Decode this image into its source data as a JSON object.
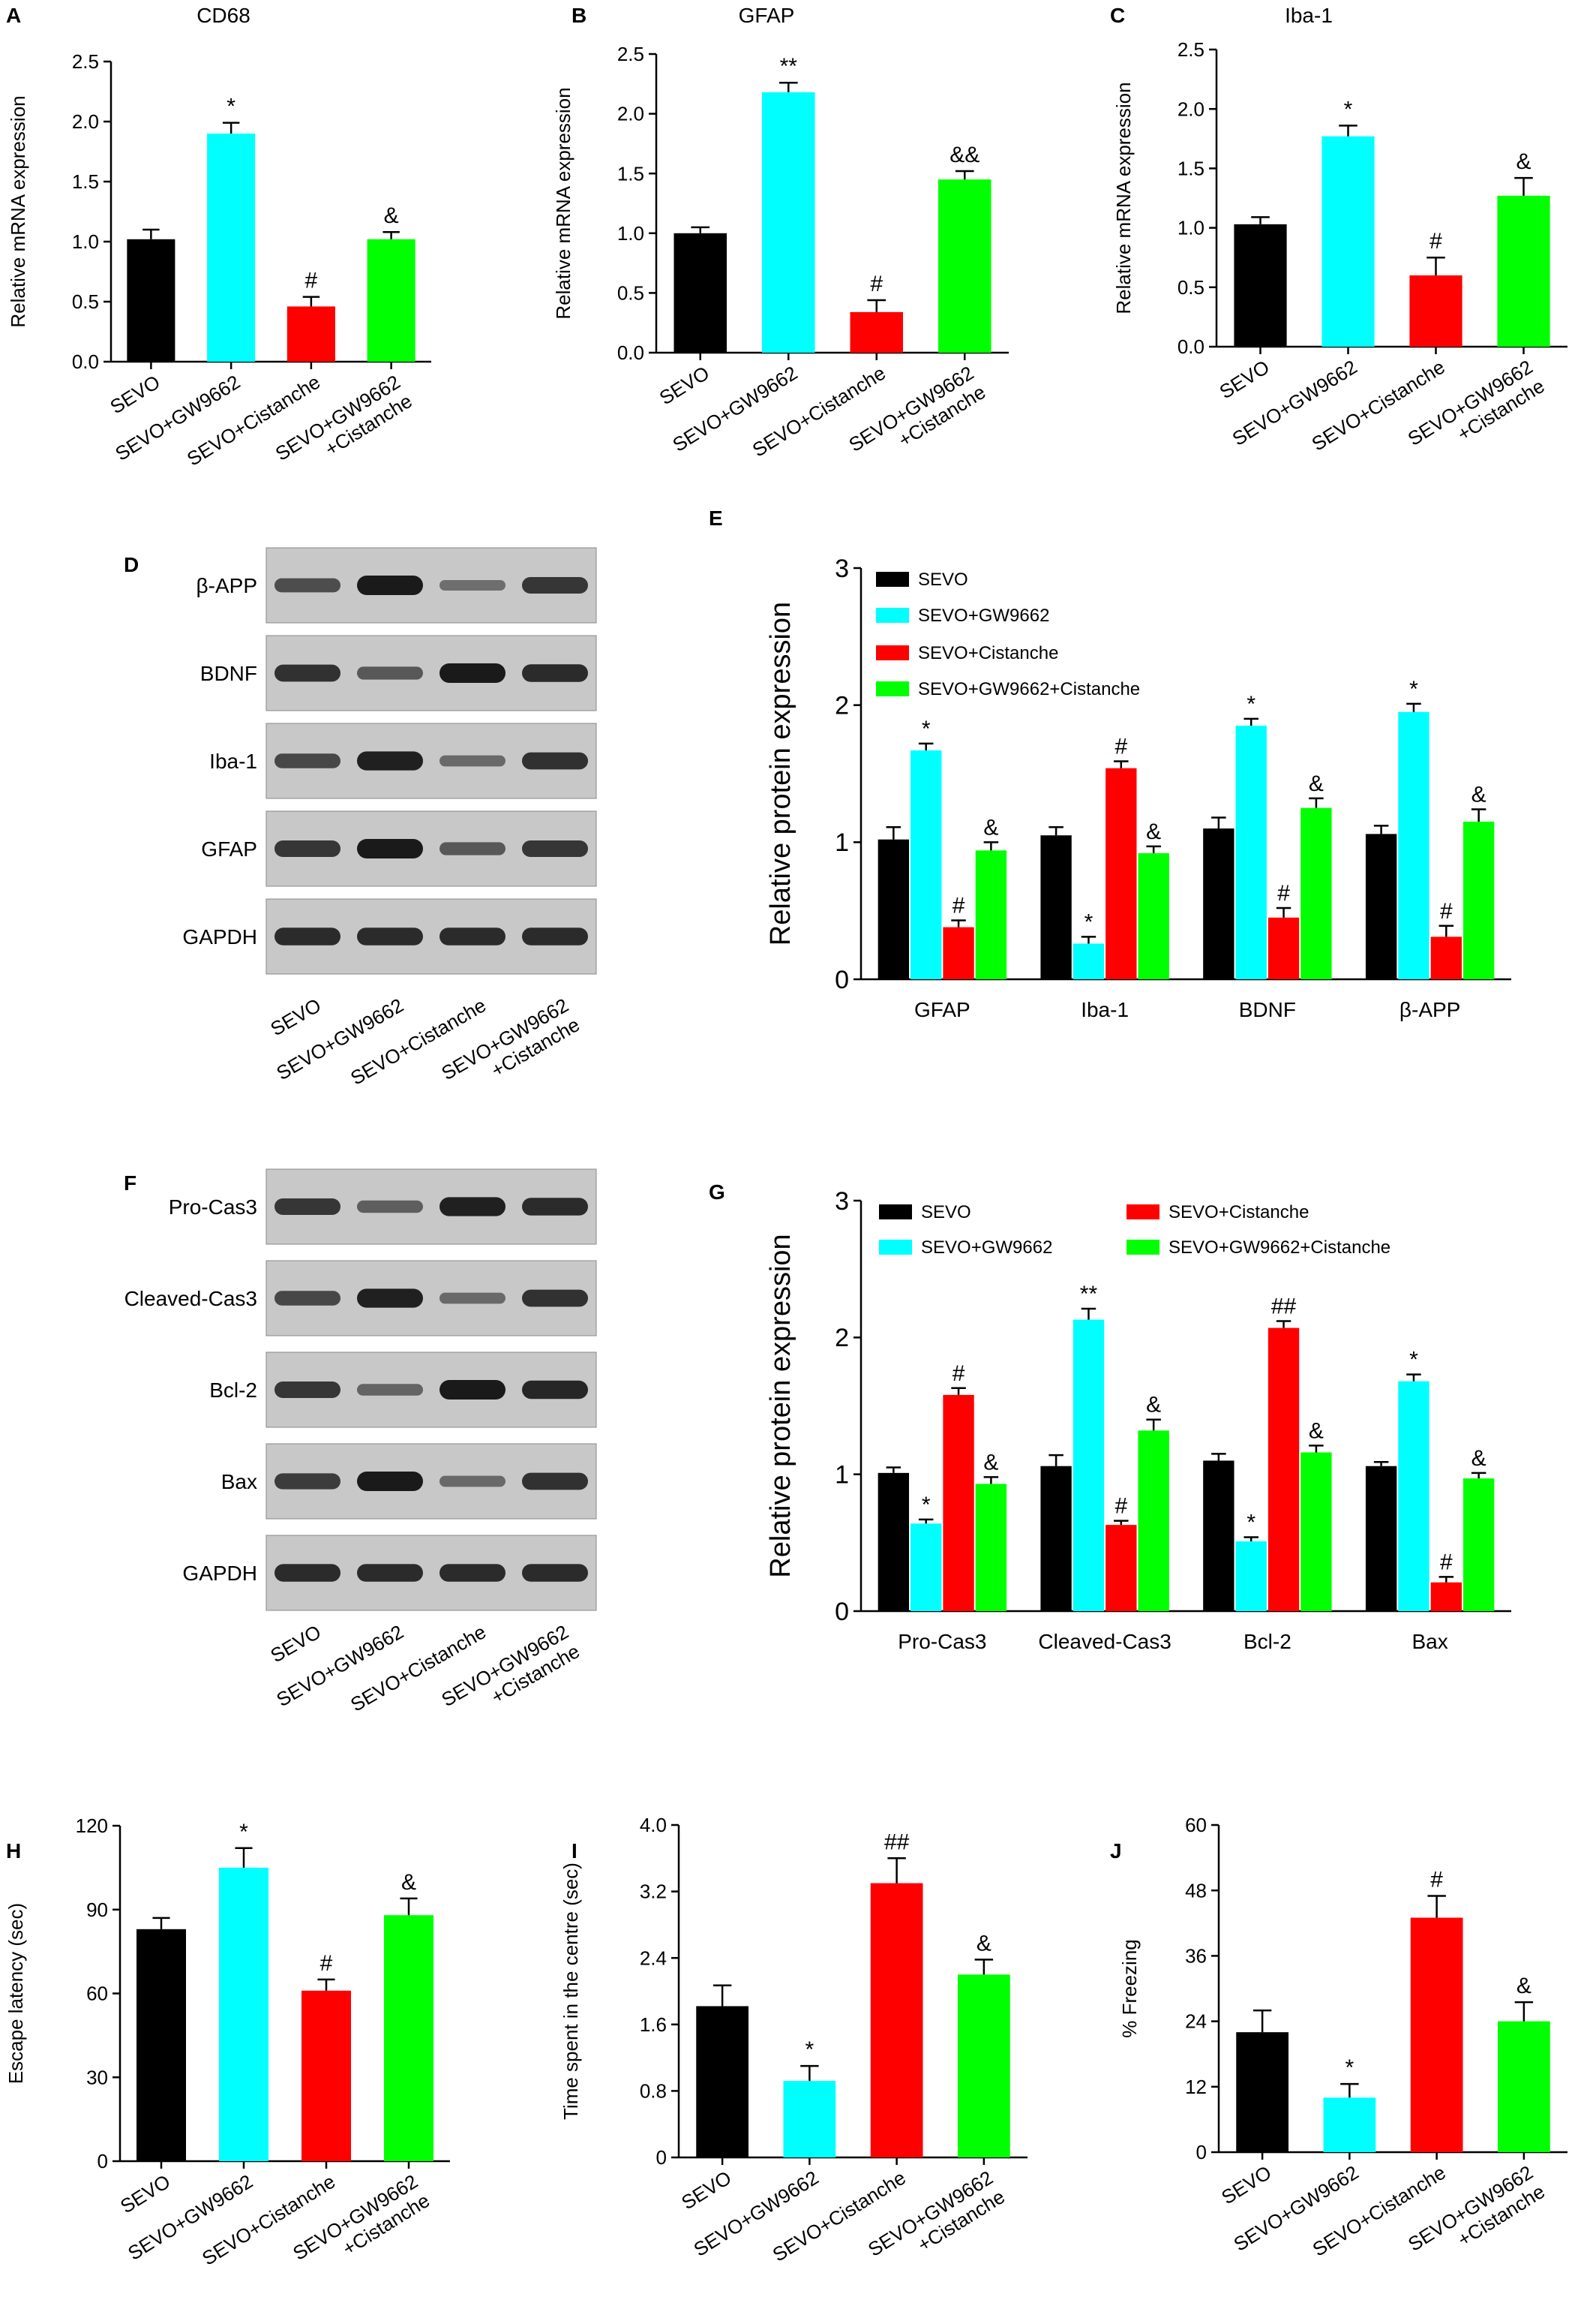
{
  "colors": {
    "SEVO": "#000000",
    "SEVO+GW9662": "#00ffff",
    "SEVO+Cistanche": "#ff0000",
    "SEVO+GW9662+Cistanche": "#00ff00",
    "blot_bg": "#c8c8c8",
    "band": "#1a1a1a"
  },
  "panels": {
    "A": "A",
    "B": "B",
    "C": "C",
    "D": "D",
    "E": "E",
    "F": "F",
    "G": "G",
    "H": "H",
    "I": "I",
    "J": "J"
  },
  "blots": {
    "D": {
      "rows": [
        {
          "label": "β-APP",
          "intensity": [
            0.55,
            1.0,
            0.25,
            0.75
          ]
        },
        {
          "label": "BDNF",
          "intensity": [
            0.8,
            0.45,
            1.0,
            0.85
          ]
        },
        {
          "label": "Iba-1",
          "intensity": [
            0.6,
            0.95,
            0.3,
            0.8
          ]
        },
        {
          "label": "GFAP",
          "intensity": [
            0.75,
            1.0,
            0.45,
            0.75
          ]
        },
        {
          "label": "GAPDH",
          "intensity": [
            0.85,
            0.85,
            0.85,
            0.85
          ]
        }
      ],
      "lanes": [
        "SEVO",
        "SEVO+GW9662",
        "SEVO+Cistanche",
        "SEVO+GW9662",
        "+Cistanche"
      ]
    },
    "F": {
      "rows": [
        {
          "label": "Pro-Cas3",
          "intensity": [
            0.75,
            0.4,
            0.95,
            0.85
          ]
        },
        {
          "label": "Cleaved-Cas3",
          "intensity": [
            0.6,
            0.95,
            0.3,
            0.8
          ]
        },
        {
          "label": "Bcl-2",
          "intensity": [
            0.75,
            0.35,
            1.0,
            0.9
          ]
        },
        {
          "label": "Bax",
          "intensity": [
            0.7,
            1.0,
            0.3,
            0.8
          ]
        },
        {
          "label": "GAPDH",
          "intensity": [
            0.85,
            0.85,
            0.85,
            0.85
          ]
        }
      ],
      "lanes": [
        "SEVO",
        "SEVO+GW9662",
        "SEVO+Cistanche",
        "SEVO+GW9662",
        "+Cistanche"
      ]
    }
  },
  "chart_data": [
    {
      "id": "A",
      "type": "bar",
      "title": "CD68",
      "ylabel": "Relative mRNA expression",
      "ylim": [
        0,
        2.5
      ],
      "yticks": [
        "0.0",
        "0.5",
        "1.0",
        "1.5",
        "2.0",
        "2.5"
      ],
      "categories": [
        "SEVO",
        "SEVO+GW9662",
        "SEVO+Cistanche",
        "SEVO+GW9662\n+Cistanche"
      ],
      "values": [
        1.02,
        1.9,
        0.46,
        1.02
      ],
      "errors": [
        0.08,
        0.09,
        0.08,
        0.06
      ],
      "annotations": [
        "",
        "*",
        "#",
        "&"
      ]
    },
    {
      "id": "B",
      "type": "bar",
      "title": "GFAP",
      "ylabel": "Relative mRNA expression",
      "ylim": [
        0,
        2.5
      ],
      "yticks": [
        "0.0",
        "0.5",
        "1.0",
        "1.5",
        "2.0",
        "2.5"
      ],
      "categories": [
        "SEVO",
        "SEVO+GW9662",
        "SEVO+Cistanche",
        "SEVO+GW9662\n+Cistanche"
      ],
      "values": [
        1.0,
        2.18,
        0.34,
        1.45
      ],
      "errors": [
        0.05,
        0.08,
        0.1,
        0.07
      ],
      "annotations": [
        "",
        "**",
        "#",
        "&&"
      ]
    },
    {
      "id": "C",
      "type": "bar",
      "title": "Iba-1",
      "ylabel": "Relative mRNA expression",
      "ylim": [
        0,
        2.5
      ],
      "yticks": [
        "0.0",
        "0.5",
        "1.0",
        "1.5",
        "2.0",
        "2.5"
      ],
      "categories": [
        "SEVO",
        "SEVO+GW9662",
        "SEVO+Cistanche",
        "SEVO+GW9662\n+Cistanche"
      ],
      "values": [
        1.03,
        1.77,
        0.6,
        1.27
      ],
      "errors": [
        0.06,
        0.09,
        0.15,
        0.15
      ],
      "annotations": [
        "",
        "*",
        "#",
        "&"
      ]
    },
    {
      "id": "E",
      "type": "bar",
      "ylabel": "Relative protein expression",
      "ylim": [
        0,
        3
      ],
      "yticks": [
        "0",
        "1",
        "2",
        "3"
      ],
      "categories": [
        "GFAP",
        "Iba-1",
        "BDNF",
        "β-APP"
      ],
      "legend": {
        "placement": "top-left-stacked",
        "entries": [
          "SEVO",
          "SEVO+GW9662",
          "SEVO+Cistanche",
          "SEVO+GW9662+Cistanche"
        ]
      },
      "series": [
        {
          "name": "SEVO",
          "values": [
            1.02,
            1.05,
            1.1,
            1.06
          ],
          "errors": [
            0.09,
            0.06,
            0.08,
            0.06
          ],
          "annotations": [
            "",
            "",
            "",
            ""
          ]
        },
        {
          "name": "SEVO+GW9662",
          "values": [
            1.67,
            0.26,
            1.85,
            1.95
          ],
          "errors": [
            0.05,
            0.05,
            0.05,
            0.06
          ],
          "annotations": [
            "*",
            "*",
            "*",
            "*"
          ]
        },
        {
          "name": "SEVO+Cistanche",
          "values": [
            0.38,
            1.54,
            0.45,
            0.31
          ],
          "errors": [
            0.05,
            0.05,
            0.07,
            0.08
          ],
          "annotations": [
            "#",
            "#",
            "#",
            "#"
          ]
        },
        {
          "name": "SEVO+GW9662+Cistanche",
          "values": [
            0.94,
            0.92,
            1.25,
            1.15
          ],
          "errors": [
            0.06,
            0.05,
            0.07,
            0.09
          ],
          "annotations": [
            "&",
            "&",
            "&",
            "&"
          ]
        }
      ]
    },
    {
      "id": "G",
      "type": "bar",
      "ylabel": "Relative protein expression",
      "ylim": [
        0,
        3
      ],
      "yticks": [
        "0",
        "1",
        "2",
        "3"
      ],
      "categories": [
        "Pro-Cas3",
        "Cleaved-Cas3",
        "Bcl-2",
        "Bax"
      ],
      "legend": {
        "placement": "top-two-columns",
        "entries": [
          "SEVO",
          "SEVO+GW9662",
          "SEVO+Cistanche",
          "SEVO+GW9662+Cistanche"
        ]
      },
      "series": [
        {
          "name": "SEVO",
          "values": [
            1.01,
            1.06,
            1.1,
            1.06
          ],
          "errors": [
            0.04,
            0.08,
            0.05,
            0.03
          ],
          "annotations": [
            "",
            "",
            "",
            ""
          ]
        },
        {
          "name": "SEVO+GW9662",
          "values": [
            0.64,
            2.13,
            0.51,
            1.68
          ],
          "errors": [
            0.03,
            0.08,
            0.03,
            0.05
          ],
          "annotations": [
            "*",
            "**",
            "*",
            "*"
          ]
        },
        {
          "name": "SEVO+Cistanche",
          "values": [
            1.58,
            0.63,
            2.07,
            0.21
          ],
          "errors": [
            0.05,
            0.03,
            0.05,
            0.04
          ],
          "annotations": [
            "#",
            "#",
            "##",
            "#"
          ]
        },
        {
          "name": "SEVO+GW9662+Cistanche",
          "values": [
            0.93,
            1.32,
            1.16,
            0.97
          ],
          "errors": [
            0.05,
            0.08,
            0.05,
            0.04
          ],
          "annotations": [
            "&",
            "&",
            "&",
            "&"
          ]
        }
      ]
    },
    {
      "id": "H",
      "type": "bar",
      "ylabel": "Escape latency (sec)",
      "ylim": [
        0,
        120
      ],
      "yticks": [
        "0",
        "30",
        "60",
        "90",
        "120"
      ],
      "categories": [
        "SEVO",
        "SEVO+GW9662",
        "SEVO+Cistanche",
        "SEVO+GW9662\n+Cistanche"
      ],
      "values": [
        83,
        105,
        61,
        88
      ],
      "errors": [
        4,
        7,
        4,
        6
      ],
      "annotations": [
        "",
        "*",
        "#",
        "&"
      ]
    },
    {
      "id": "I",
      "type": "bar",
      "ylabel": "Time spent in the centre (sec)",
      "ylim": [
        0,
        4.0
      ],
      "yticks": [
        "0",
        "0.8",
        "1.6",
        "2.4",
        "3.2",
        "4.0"
      ],
      "categories": [
        "SEVO",
        "SEVO+GW9662",
        "SEVO+Cistanche",
        "SEVO+GW9662\n+Cistanche"
      ],
      "values": [
        1.82,
        0.92,
        3.3,
        2.2
      ],
      "errors": [
        0.25,
        0.18,
        0.3,
        0.18
      ],
      "annotations": [
        "",
        "*",
        "##",
        "&"
      ]
    },
    {
      "id": "J",
      "type": "bar",
      "ylabel": "% Freezing",
      "ylim": [
        0,
        60
      ],
      "yticks": [
        "0",
        "12",
        "24",
        "36",
        "48",
        "60"
      ],
      "categories": [
        "SEVO",
        "SEVO+GW9662",
        "SEVO+Cistanche",
        "SEVO+GW9662\n+Cistanche"
      ],
      "values": [
        22,
        10,
        43,
        24
      ],
      "errors": [
        4,
        2.5,
        4,
        3.5
      ],
      "annotations": [
        "",
        "*",
        "#",
        "&"
      ]
    }
  ]
}
